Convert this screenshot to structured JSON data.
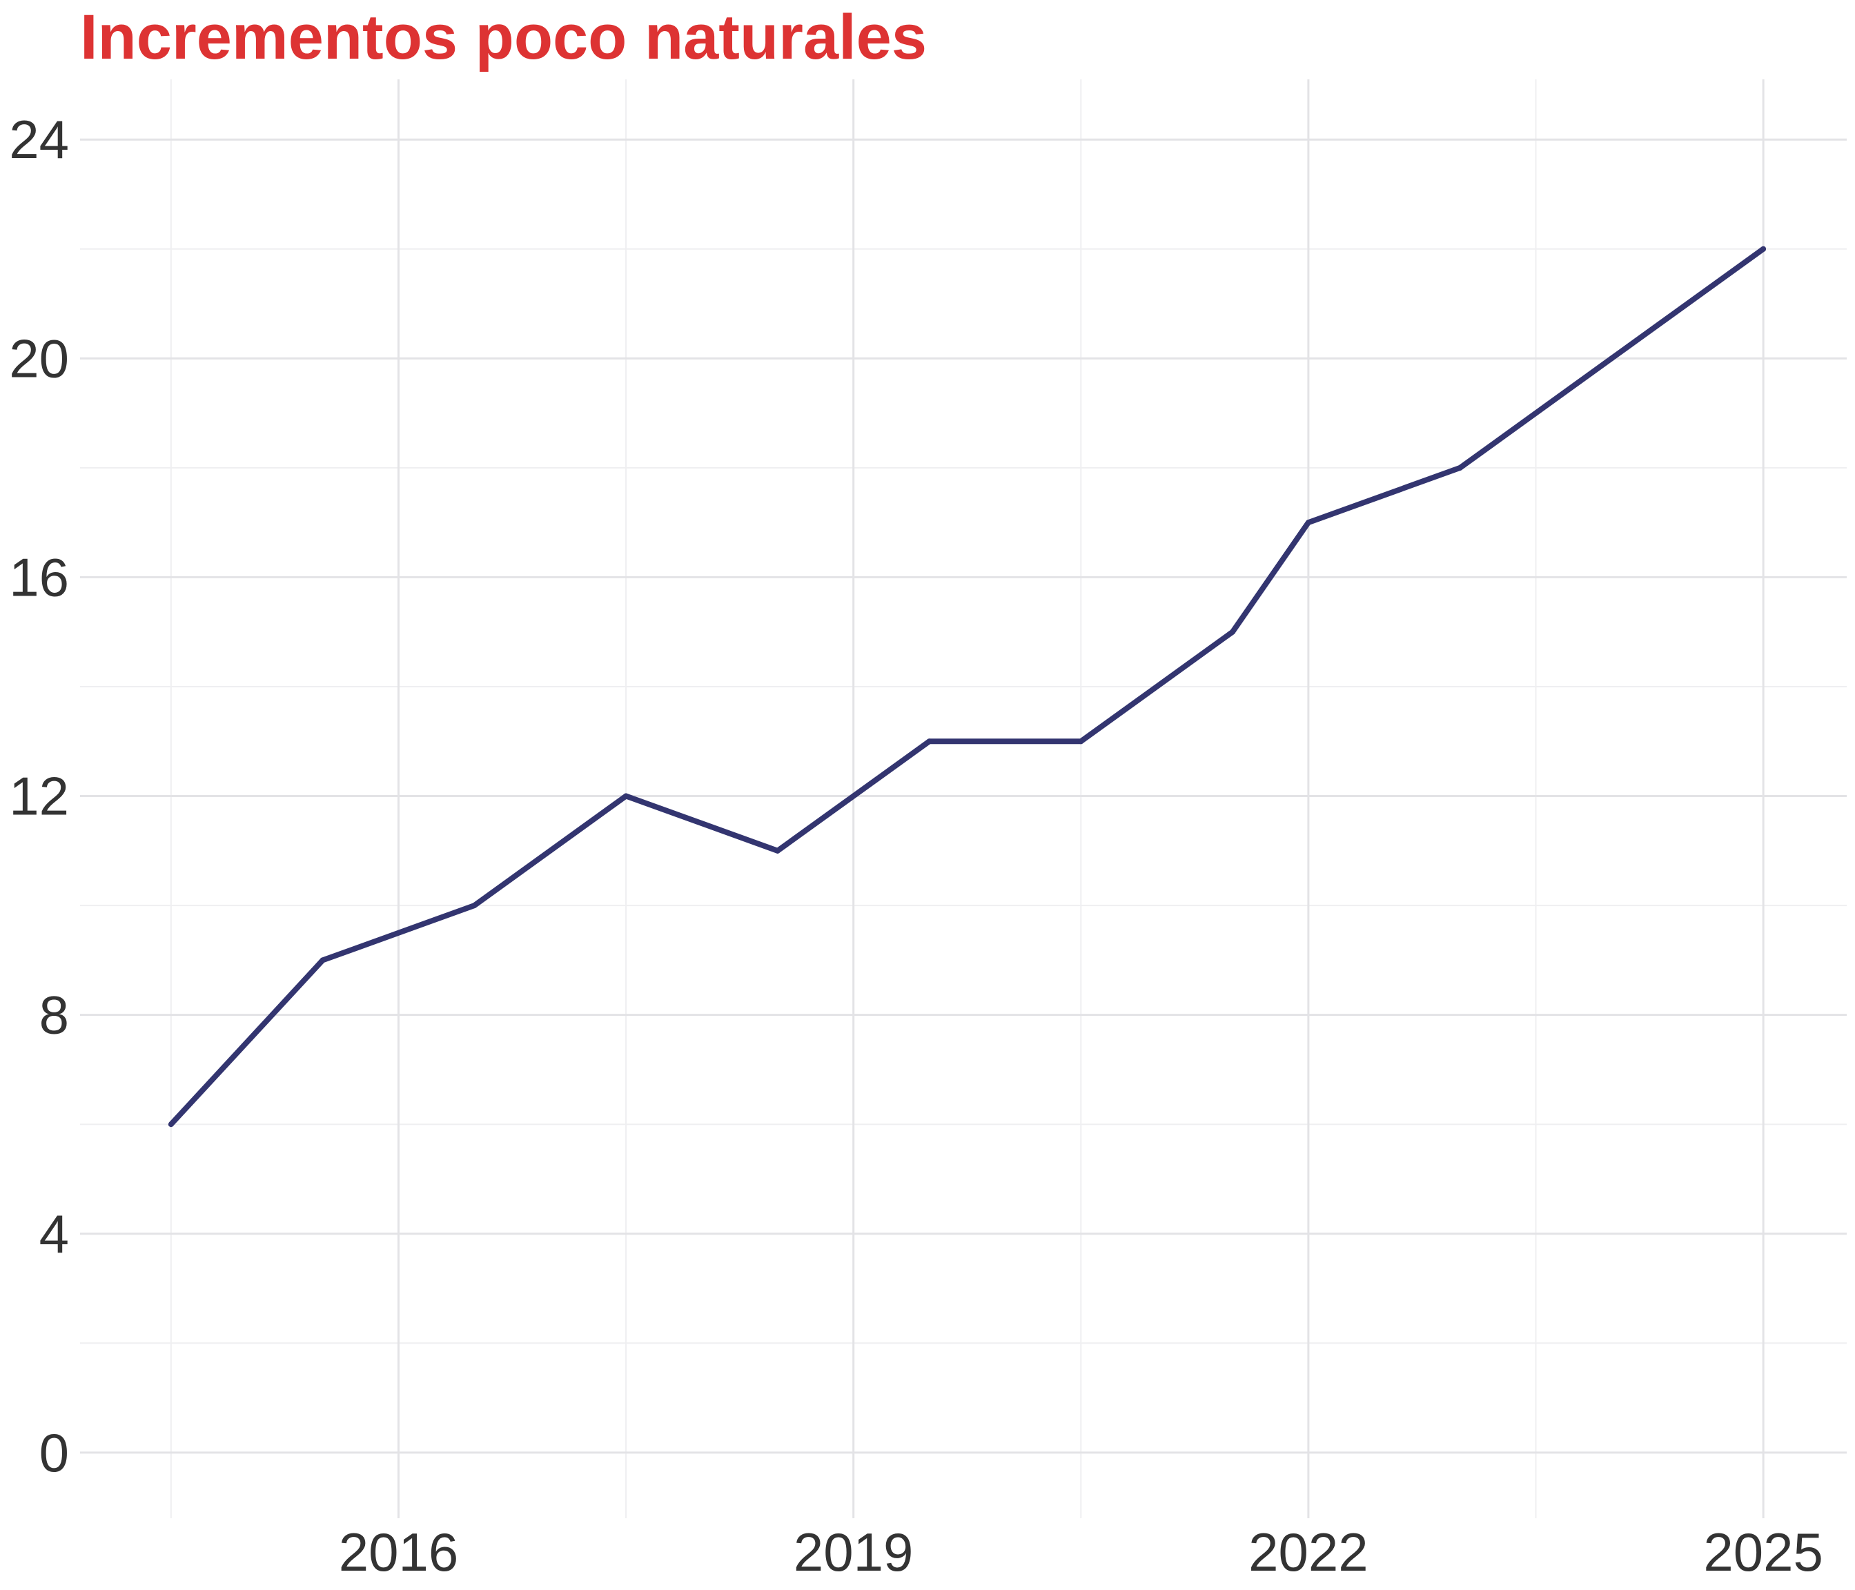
{
  "chart_data": {
    "type": "line",
    "title": "Incrementos poco naturales",
    "xlabel": "",
    "ylabel": "",
    "x": [
      2014.5,
      2015.5,
      2016.5,
      2017.5,
      2018.5,
      2019.5,
      2020.5,
      2021.5,
      2022.0,
      2023.0,
      2024.0,
      2025.0
    ],
    "series": [
      {
        "values": [
          6,
          9,
          10,
          12,
          11,
          13,
          13,
          15,
          17,
          18,
          20,
          22
        ]
      }
    ],
    "xlim": [
      2013.9,
      2025.55
    ],
    "ylim": [
      -1.2,
      25.1
    ],
    "x_ticks": [
      2016,
      2019,
      2022,
      2025
    ],
    "x_tick_labels": [
      "2016",
      "2019",
      "2022",
      "2025"
    ],
    "y_ticks": [
      0,
      4,
      8,
      12,
      16,
      20,
      24
    ],
    "y_tick_labels": [
      "0",
      "4",
      "8",
      "12",
      "16",
      "20",
      "24"
    ],
    "x_minor_ticks": [
      2014.5,
      2017.5,
      2020.5,
      2023.5
    ],
    "y_minor_ticks": [
      2,
      6,
      10,
      14,
      18,
      22
    ],
    "grid": true,
    "legend": "none",
    "colors": {
      "line": "#333570",
      "title": "#dd3333",
      "tick_label": "#333333",
      "grid_major": "#e3e3e6",
      "grid_minor": "#efeff1"
    }
  }
}
